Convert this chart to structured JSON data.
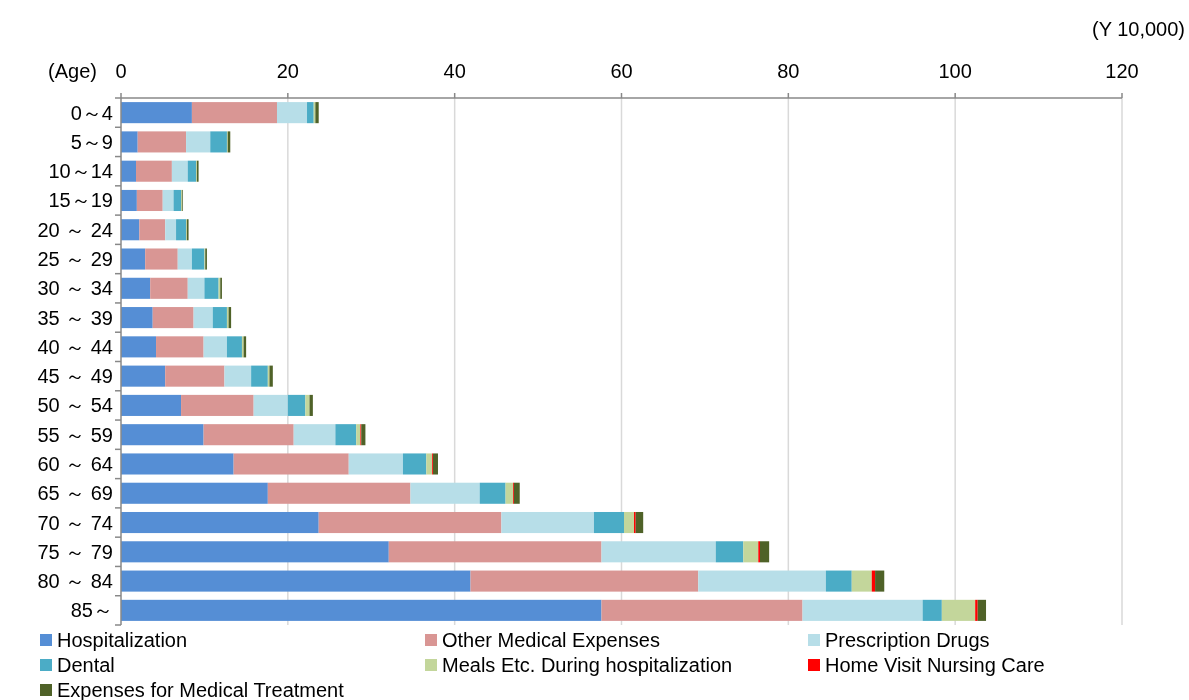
{
  "chart_data": {
    "type": "bar",
    "orientation": "horizontal",
    "stacked": true,
    "xlabel": "(Y 10,000)",
    "ylabel": "(Age)",
    "categories": [
      "0～4",
      "5～9",
      "10～14",
      "15～19",
      "20 ～ 24",
      "25 ～ 29",
      "30 ～ 34",
      "35 ～ 39",
      "40 ～ 44",
      "45 ～ 49",
      "50 ～ 54",
      "55 ～ 59",
      "60 ～ 64",
      "65 ～ 69",
      "70 ～ 74",
      "75 ～ 79",
      "80 ～ 84",
      "85～"
    ],
    "xlim": [
      0,
      120
    ],
    "xticks": [
      0,
      20,
      40,
      60,
      80,
      100,
      120
    ],
    "grid": "x",
    "legend": "bottom",
    "series": [
      {
        "name": "Hospitalization",
        "color": "#558ed5",
        "values": [
          8.5,
          2.0,
          1.8,
          1.9,
          2.2,
          2.9,
          3.5,
          3.8,
          4.2,
          5.3,
          7.2,
          9.9,
          13.5,
          17.6,
          23.7,
          32.1,
          41.9,
          57.6
        ]
      },
      {
        "name": "Other Medical Expenses",
        "color": "#d99694",
        "values": [
          10.2,
          5.8,
          4.3,
          3.1,
          3.1,
          3.9,
          4.5,
          4.9,
          5.7,
          7.1,
          8.7,
          10.8,
          13.8,
          17.1,
          21.9,
          25.5,
          27.3,
          24.1
        ]
      },
      {
        "name": "Prescription Drugs",
        "color": "#b7dee8",
        "values": [
          3.6,
          2.9,
          1.9,
          1.3,
          1.3,
          1.7,
          2.0,
          2.3,
          2.8,
          3.2,
          4.1,
          5.0,
          6.5,
          8.3,
          11.1,
          13.7,
          15.3,
          14.4
        ]
      },
      {
        "name": "Dental",
        "color": "#4bacc6",
        "values": [
          0.8,
          2.0,
          1.0,
          0.9,
          1.2,
          1.5,
          1.7,
          1.7,
          1.8,
          2.0,
          2.1,
          2.5,
          2.8,
          3.1,
          3.6,
          3.3,
          3.1,
          2.3
        ]
      },
      {
        "name": "Meals Etc. During hospitalization",
        "color": "#c3d69b",
        "values": [
          0.2,
          0.1,
          0.1,
          0.1,
          0.1,
          0.1,
          0.2,
          0.2,
          0.2,
          0.2,
          0.5,
          0.5,
          0.7,
          0.9,
          1.2,
          1.8,
          2.4,
          4.0
        ]
      },
      {
        "name": "Home Visit Nursing Care",
        "color": "#ff0000",
        "values": [
          0,
          0,
          0,
          0,
          0,
          0,
          0,
          0,
          0,
          0,
          0,
          0.1,
          0.1,
          0.1,
          0.2,
          0.2,
          0.4,
          0.3
        ]
      },
      {
        "name": "Expenses for Medical Treatment",
        "color": "#4f6228",
        "values": [
          0.4,
          0.3,
          0.2,
          0.1,
          0.2,
          0.2,
          0.2,
          0.3,
          0.3,
          0.4,
          0.4,
          0.5,
          0.6,
          0.7,
          0.9,
          1.1,
          1.1,
          1.0
        ]
      }
    ]
  }
}
